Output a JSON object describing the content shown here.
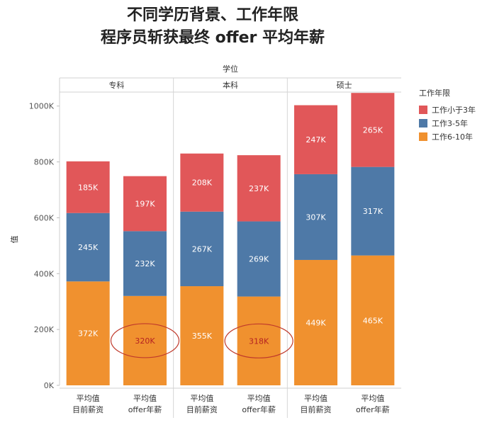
{
  "title": {
    "line1": "不同学历背景、工作年限",
    "line2": "程序员斩获最终 offer 平均年薪"
  },
  "chart_data": {
    "type": "bar",
    "stacked": true,
    "column_header": "学位",
    "groups": [
      "专科",
      "本科",
      "硕士"
    ],
    "ylabel": "值",
    "ylim": [
      0,
      1050
    ],
    "yticks": [
      0,
      200,
      400,
      600,
      800,
      1000
    ],
    "ytick_labels": [
      "0K",
      "200K",
      "400K",
      "600K",
      "800K",
      "1000K"
    ],
    "grid": false,
    "bars": [
      {
        "group": "专科",
        "label_line1": "平均值",
        "label_line2": "目前薪资"
      },
      {
        "group": "专科",
        "label_line1": "平均值",
        "label_line2": "offer年薪"
      },
      {
        "group": "本科",
        "label_line1": "平均值",
        "label_line2": "目前薪资"
      },
      {
        "group": "本科",
        "label_line1": "平均值",
        "label_line2": "offer年薪"
      },
      {
        "group": "硕士",
        "label_line1": "平均值",
        "label_line2": "目前薪资"
      },
      {
        "group": "硕士",
        "label_line1": "平均值",
        "label_line2": "offer年薪"
      }
    ],
    "series": [
      {
        "name": "工作6-10年",
        "color": "#f0912f",
        "values": [
          372,
          320,
          355,
          318,
          449,
          465
        ],
        "labels": [
          "372K",
          "320K",
          "355K",
          "318K",
          "449K",
          "465K"
        ]
      },
      {
        "name": "工作3-5年",
        "color": "#4e79a7",
        "values": [
          245,
          232,
          267,
          269,
          307,
          317
        ],
        "labels": [
          "245K",
          "232K",
          "267K",
          "269K",
          "307K",
          "317K"
        ]
      },
      {
        "name": "工作小于3年",
        "color": "#e15759",
        "values": [
          185,
          197,
          208,
          237,
          247,
          265
        ],
        "labels": [
          "185K",
          "197K",
          "208K",
          "237K",
          "247K",
          "265K"
        ]
      }
    ],
    "highlighted_bars": [
      1,
      3
    ],
    "legend": {
      "title": "工作年限",
      "position": "right",
      "items": [
        {
          "name": "工作小于3年",
          "color": "#e15759"
        },
        {
          "name": "工作3-5年",
          "color": "#4e79a7"
        },
        {
          "name": "工作6-10年",
          "color": "#f0912f"
        }
      ]
    }
  }
}
